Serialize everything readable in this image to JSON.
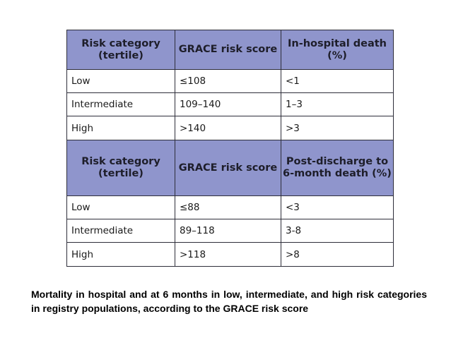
{
  "table": {
    "section1": {
      "headers": [
        "Risk category (tertile)",
        "GRACE risk score",
        "In-hospital death (%)"
      ],
      "rows": [
        [
          "Low",
          "≤108",
          "<1"
        ],
        [
          "Intermediate",
          "109–140",
          "1–3"
        ],
        [
          "High",
          ">140",
          ">3"
        ]
      ]
    },
    "section2": {
      "headers": [
        "Risk category (tertile)",
        "GRACE risk score",
        "Post-discharge to 6-month death (%)"
      ],
      "rows": [
        [
          "Low",
          "≤88",
          "<3"
        ],
        [
          "Intermediate",
          "89–118",
          "3-8"
        ],
        [
          "High",
          ">118",
          ">8"
        ]
      ]
    },
    "header_color": "#8f95cc",
    "border_color": "#2e2e3a"
  },
  "caption": "Mortality in hospital and at 6 months in low, intermediate, and high risk categories in registry populations, according to the GRACE risk score"
}
